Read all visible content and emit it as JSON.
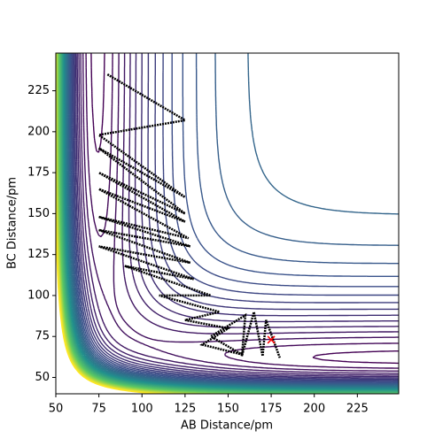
{
  "chart_data": {
    "type": "contour",
    "x_label": "AB Distance/pm",
    "y_label": "BC Distance/pm",
    "xlim": [
      50,
      249
    ],
    "ylim": [
      40,
      248
    ],
    "xticks": [
      50,
      75,
      100,
      125,
      150,
      175,
      200,
      225
    ],
    "yticks": [
      50,
      75,
      100,
      125,
      150,
      175,
      200,
      225
    ],
    "trajectory": {
      "color": "#000000",
      "x": [
        80,
        125,
        75,
        125,
        75,
        125,
        75,
        125,
        75,
        127,
        75,
        128,
        75,
        128,
        75,
        130,
        90,
        140,
        110,
        145,
        125,
        150,
        135,
        158,
        140,
        160,
        158,
        165,
        170,
        172,
        180
      ],
      "y": [
        235,
        207,
        198,
        160,
        190,
        150,
        175,
        145,
        165,
        135,
        148,
        130,
        140,
        120,
        130,
        110,
        118,
        100,
        100,
        90,
        85,
        80,
        70,
        64,
        75,
        88,
        63,
        90,
        63,
        85,
        62
      ]
    },
    "marker": {
      "x": 175,
      "y": 73,
      "color": "#ff0000"
    }
  }
}
